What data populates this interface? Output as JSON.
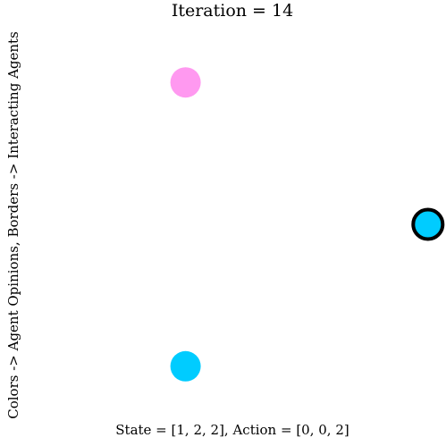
{
  "chart_data": {
    "type": "scatter",
    "title": "Iteration = 14",
    "ylabel": "Colors -> Agent Opinions, Borders -> Interacting Agents",
    "footer": "State = [1, 2, 2], Action = [0, 0, 2]",
    "grid": false,
    "legend": "none",
    "xlim": [
      -1.2,
      1.2
    ],
    "ylim": [
      -1.2,
      1.2
    ],
    "points": [
      {
        "x": -0.5,
        "y": 0.866,
        "color": "#ff99f0",
        "interacting": false
      },
      {
        "x": 1.0,
        "y": 0.0,
        "color": "#00ccff",
        "interacting": true
      },
      {
        "x": -0.5,
        "y": -0.866,
        "color": "#00ccff",
        "interacting": false
      }
    ]
  }
}
